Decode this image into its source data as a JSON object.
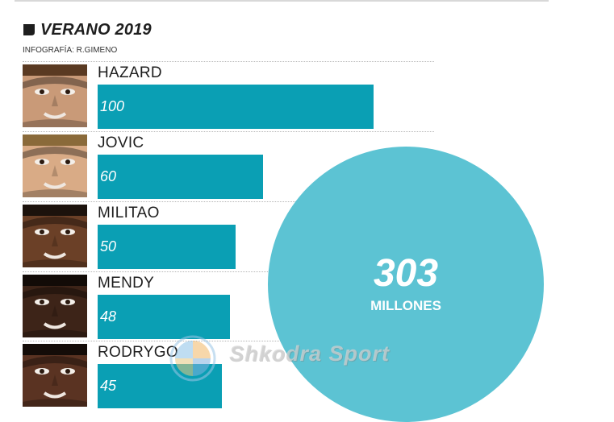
{
  "header": {
    "title": "VERANO 2019",
    "credit": "INFOGRAFÍA: R.GIMENO"
  },
  "chart_data": {
    "type": "bar",
    "orientation": "horizontal",
    "categories": [
      "HAZARD",
      "JOVIC",
      "MILITAO",
      "MENDY",
      "RODRYGO"
    ],
    "values": [
      100,
      60,
      50,
      48,
      45
    ],
    "bar_color": "#0a9fb4",
    "total": {
      "value": "303",
      "unit": "MILLONES",
      "color": "#5cc3d3"
    }
  },
  "players": [
    {
      "name": "HAZARD",
      "value": "100",
      "skin": "#c99a78",
      "hair": "#5a3a22"
    },
    {
      "name": "JOVIC",
      "value": "60",
      "skin": "#d9ab86",
      "hair": "#8a6a3a"
    },
    {
      "name": "MILITAO",
      "value": "50",
      "skin": "#6b4027",
      "hair": "#1c120c"
    },
    {
      "name": "MENDY",
      "value": "48",
      "skin": "#3d2418",
      "hair": "#120b07"
    },
    {
      "name": "RODRYGO",
      "value": "45",
      "skin": "#5a3322",
      "hair": "#140c08"
    }
  ],
  "watermark": {
    "text": "Shkodra Sport"
  }
}
